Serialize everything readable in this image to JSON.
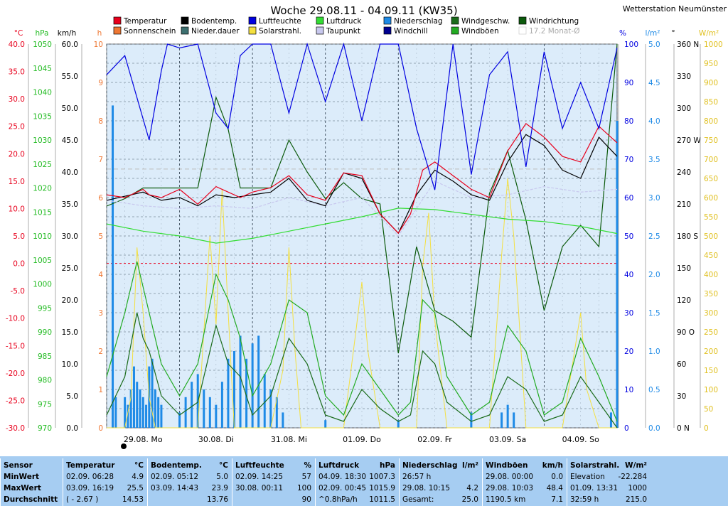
{
  "title": "Woche 29.08.11 - 04.09.11 (KW35)",
  "station": "Wetterstation Neumünster",
  "legend": [
    {
      "label": "Temperatur",
      "color": "#e8001c"
    },
    {
      "label": "Bodentemp.",
      "color": "#000000"
    },
    {
      "label": "Luftfeuchte",
      "color": "#0000e0"
    },
    {
      "label": "Luftdruck",
      "color": "#33dd33"
    },
    {
      "label": "Niederschlag",
      "color": "#1e8ae6"
    },
    {
      "label": "Windgeschw.",
      "color": "#1a6b1a"
    },
    {
      "label": "Windrichtung",
      "color": "#0c5a0c"
    },
    {
      "label": "Sonnenschein",
      "color": "#ee7733"
    },
    {
      "label": "Nieder.dauer",
      "color": "#3d7070"
    },
    {
      "label": "Solarstrahl.",
      "color": "#f4e040"
    },
    {
      "label": "Taupunkt",
      "color": "#c8c8ee"
    },
    {
      "label": "Windchill",
      "color": "#000090"
    },
    {
      "label": "Windböen",
      "color": "#22aa22"
    },
    {
      "label": "17.2 Monat-Ø",
      "color": "#cccccc"
    }
  ],
  "axes": {
    "temp": {
      "unit": "°C",
      "color": "#e8001c",
      "ticks": [
        "40.0",
        "35.0",
        "30.0",
        "25.0",
        "20.0",
        "15.0",
        "10.0",
        "5.0",
        "0.0",
        "-5.0",
        "-10.0",
        "-15.0",
        "-20.0",
        "-25.0",
        "-30.0"
      ]
    },
    "pressure": {
      "unit": "hPa",
      "color": "#22bb22",
      "ticks": [
        "1050",
        "1045",
        "1040",
        "1035",
        "1030",
        "1025",
        "1020",
        "1015",
        "1010",
        "1005",
        "1000",
        "995",
        "990",
        "985",
        "980",
        "975",
        "970"
      ]
    },
    "wind": {
      "unit": "km/h",
      "color": "#000000",
      "ticks": [
        "60.0",
        "55.0",
        "50.0",
        "45.0",
        "40.0",
        "35.0",
        "30.0",
        "25.0",
        "20.0",
        "15.0",
        "10.0",
        "5.0",
        "0.0"
      ]
    },
    "hours": {
      "unit": "h",
      "color": "#ee7733",
      "ticks": [
        "10",
        "9",
        "8",
        "7",
        "6",
        "5",
        "4",
        "3",
        "2",
        "1",
        "0"
      ]
    },
    "humidity": {
      "unit": "%",
      "color": "#0000e0",
      "ticks": [
        "100",
        "90",
        "80",
        "70",
        "60",
        "50",
        "40",
        "30",
        "20",
        "10",
        "0"
      ]
    },
    "rain": {
      "unit": "l/m²",
      "color": "#1e8ae6",
      "ticks": [
        "5.0",
        "4.5",
        "4.0",
        "3.5",
        "3.0",
        "2.5",
        "2.0",
        "1.5",
        "1.0",
        "0.5",
        "0.0"
      ]
    },
    "direction": {
      "unit": "°",
      "color": "#000000",
      "ticks": [
        "360 N",
        "330",
        "300",
        "270 W",
        "240",
        "210",
        "180 S",
        "150",
        "120",
        "90 O",
        "60",
        "30",
        "0 N"
      ]
    },
    "solar": {
      "unit": "W/m²",
      "color": "#e0c020",
      "ticks": [
        "1000",
        "950",
        "900",
        "850",
        "800",
        "750",
        "700",
        "650",
        "600",
        "550",
        "500",
        "450",
        "400",
        "350",
        "300",
        "250",
        "200",
        "150",
        "100",
        "50",
        "0"
      ]
    }
  },
  "days": [
    "29.08.  Mo",
    "30.08.  Di",
    "31.08.  Mi",
    "01.09.  Do",
    "02.09.  Fr",
    "03.09.  Sa",
    "04.09.  So"
  ],
  "chart_data": {
    "type": "line",
    "title": "Woche 29.08.11 - 04.09.11 (KW35)",
    "x_unit": "hours since 29.08. 00:00",
    "x_range": [
      0,
      168
    ],
    "monthly_avg_temp": 17.2,
    "series": [
      {
        "name": "Temperatur",
        "axis": "°C",
        "x": [
          0,
          6,
          12,
          14,
          18,
          24,
          30,
          36,
          40,
          44,
          48,
          54,
          60,
          66,
          72,
          78,
          84,
          90,
          96,
          100,
          104,
          108,
          114,
          120,
          126,
          132,
          138,
          144,
          150,
          156,
          162,
          168
        ],
        "y": [
          12.5,
          12.0,
          13.5,
          12.5,
          12.0,
          13.5,
          10.8,
          14.0,
          13.0,
          12.0,
          13.0,
          13.8,
          16.0,
          12.5,
          11.5,
          16.5,
          16.0,
          9.0,
          5.5,
          9.0,
          17.0,
          18.5,
          16.0,
          13.5,
          12.0,
          20.5,
          25.5,
          23.0,
          19.5,
          18.5,
          25.0,
          22.0
        ]
      },
      {
        "name": "Bodentemp.",
        "axis": "°C",
        "x": [
          0,
          12,
          18,
          24,
          30,
          36,
          42,
          48,
          54,
          60,
          66,
          72,
          78,
          84,
          90,
          96,
          102,
          108,
          114,
          120,
          126,
          132,
          138,
          144,
          150,
          156,
          162,
          168
        ],
        "y": [
          11.5,
          13.0,
          11.5,
          12.0,
          10.5,
          12.5,
          12.0,
          12.5,
          13.0,
          15.5,
          11.5,
          10.5,
          16.5,
          15.5,
          9.0,
          5.5,
          12.5,
          17.0,
          15.0,
          12.5,
          11.5,
          18.5,
          23.5,
          21.5,
          17.0,
          15.5,
          23.0,
          19.5
        ]
      },
      {
        "name": "Taupunkt",
        "axis": "°C",
        "x": [
          0,
          12,
          24,
          36,
          48,
          60,
          72,
          84,
          96,
          108,
          120,
          132,
          144,
          156,
          168
        ],
        "y": [
          11.5,
          10.5,
          10.0,
          10.5,
          10.0,
          12.0,
          10.5,
          12.0,
          5.0,
          15.0,
          12.0,
          12.5,
          14.0,
          13.0,
          13.5
        ]
      },
      {
        "name": "Luftfeuchte",
        "axis": "%",
        "x": [
          0,
          6,
          10,
          14,
          18,
          20,
          24,
          30,
          36,
          40,
          44,
          48,
          54,
          60,
          66,
          72,
          78,
          84,
          90,
          96,
          102,
          108,
          114,
          120,
          126,
          132,
          138,
          144,
          150,
          156,
          162,
          168
        ],
        "y": [
          92,
          97,
          86,
          75,
          93,
          100,
          99,
          100,
          82,
          78,
          97,
          100,
          100,
          82,
          100,
          85,
          100,
          80,
          100,
          100,
          78,
          62,
          100,
          66,
          92,
          98,
          68,
          98,
          78,
          90,
          78,
          99
        ]
      },
      {
        "name": "Luftdruck",
        "axis": "hPa",
        "x": [
          0,
          12,
          24,
          36,
          48,
          60,
          72,
          84,
          96,
          108,
          120,
          132,
          144,
          156,
          168
        ],
        "y": [
          1012.5,
          1011.0,
          1010.0,
          1008.5,
          1009.5,
          1011.0,
          1012.5,
          1014.0,
          1015.8,
          1015.5,
          1014.5,
          1013.5,
          1013.0,
          1012.0,
          1010.5
        ]
      },
      {
        "name": "Niederschlag",
        "axis": "l/m²",
        "type": "bar",
        "x": [
          2,
          3,
          6,
          7,
          8,
          9,
          10,
          11,
          12,
          13,
          14,
          15,
          16,
          17,
          18,
          24,
          26,
          28,
          30,
          32,
          34,
          36,
          38,
          40,
          42,
          44,
          46,
          48,
          50,
          52,
          54,
          56,
          58,
          72,
          96,
          120,
          130,
          132,
          134,
          166,
          168
        ],
        "y": [
          4.2,
          0.4,
          0.4,
          0.3,
          0.5,
          0.8,
          0.6,
          0.5,
          0.4,
          0.3,
          0.8,
          0.9,
          0.5,
          0.4,
          0.3,
          0.2,
          0.4,
          0.6,
          0.7,
          0.5,
          0.4,
          0.3,
          0.6,
          0.9,
          1.0,
          1.2,
          0.9,
          1.1,
          1.2,
          0.7,
          0.5,
          0.4,
          0.2,
          0.1,
          0.1,
          0.2,
          0.2,
          0.3,
          0.2,
          0.2,
          4.0
        ]
      },
      {
        "name": "Solarstrahl.",
        "axis": "W/m²",
        "x": [
          0,
          6,
          8,
          10,
          12,
          14,
          16,
          18,
          24,
          30,
          34,
          36,
          38,
          40,
          42,
          48,
          54,
          58,
          60,
          62,
          64,
          66,
          72,
          78,
          82,
          84,
          86,
          90,
          96,
          102,
          104,
          106,
          108,
          112,
          120,
          126,
          130,
          132,
          134,
          138,
          144,
          150,
          154,
          156,
          158,
          162,
          168
        ],
        "y": [
          0,
          0,
          80,
          470,
          300,
          80,
          0,
          0,
          0,
          0,
          500,
          270,
          620,
          300,
          0,
          0,
          0,
          150,
          470,
          200,
          0,
          0,
          0,
          0,
          250,
          380,
          200,
          0,
          0,
          0,
          420,
          560,
          280,
          0,
          0,
          0,
          450,
          650,
          500,
          0,
          0,
          0,
          200,
          300,
          100,
          0,
          0
        ]
      },
      {
        "name": "Windgeschw.",
        "axis": "km/h",
        "x": [
          0,
          6,
          10,
          12,
          14,
          18,
          24,
          30,
          36,
          40,
          44,
          48,
          54,
          60,
          66,
          72,
          78,
          84,
          90,
          96,
          100,
          104,
          108,
          112,
          120,
          126,
          132,
          138,
          144,
          150,
          156,
          162,
          168
        ],
        "y": [
          2,
          8,
          18,
          14,
          12,
          5,
          2,
          4,
          16,
          10,
          8,
          2,
          5,
          14,
          10,
          2,
          1,
          6,
          3,
          1,
          2,
          12,
          10,
          4,
          1,
          2,
          8,
          6,
          1,
          2,
          8,
          4,
          0
        ]
      },
      {
        "name": "Windböen",
        "axis": "km/h",
        "x": [
          0,
          6,
          10,
          12,
          14,
          18,
          24,
          30,
          36,
          40,
          44,
          48,
          54,
          60,
          66,
          72,
          78,
          84,
          90,
          96,
          100,
          104,
          108,
          112,
          120,
          126,
          132,
          138,
          144,
          150,
          156,
          162,
          168
        ],
        "y": [
          8,
          18,
          26,
          22,
          18,
          10,
          5,
          10,
          24,
          20,
          14,
          5,
          10,
          20,
          18,
          5,
          2,
          10,
          6,
          2,
          4,
          20,
          18,
          8,
          2,
          4,
          16,
          12,
          2,
          4,
          14,
          8,
          1
        ]
      },
      {
        "name": "Windrichtung",
        "axis": "°",
        "x": [
          0,
          6,
          12,
          18,
          24,
          30,
          36,
          40,
          44,
          48,
          54,
          60,
          66,
          72,
          78,
          84,
          90,
          96,
          102,
          108,
          114,
          120,
          126,
          132,
          138,
          144,
          150,
          156,
          162,
          168
        ],
        "y": [
          208,
          215,
          225,
          225,
          225,
          225,
          310,
          280,
          225,
          225,
          225,
          270,
          240,
          215,
          230,
          215,
          210,
          70,
          170,
          110,
          100,
          85,
          220,
          260,
          195,
          110,
          170,
          190,
          170,
          360
        ]
      }
    ]
  },
  "stats": {
    "cols": [
      {
        "hdr": "Sensor",
        "unit": "",
        "rows": [
          [
            "MinWert",
            "",
            ""
          ],
          [
            "MaxWert",
            "",
            ""
          ],
          [
            "Durchschnitt",
            "",
            ""
          ]
        ]
      },
      {
        "hdr": "Temperatur",
        "unit": "°C",
        "rows": [
          [
            "02.09.  06:28",
            "",
            "4.9"
          ],
          [
            "03.09.  16:19",
            "",
            "25.5"
          ],
          [
            "( - 2.67 )",
            "",
            "14.53"
          ]
        ]
      },
      {
        "hdr": "Bodentemp.",
        "unit": "°C",
        "rows": [
          [
            "02.09.  05:12",
            "",
            "5.0"
          ],
          [
            "03.09.  14:43",
            "",
            "23.9"
          ],
          [
            "",
            "",
            "13.76"
          ]
        ]
      },
      {
        "hdr": "Luftfeuchte",
        "unit": "%",
        "rows": [
          [
            "02.09.  14:25",
            "",
            "57"
          ],
          [
            "30.08.  00:11",
            "",
            "100"
          ],
          [
            "",
            "",
            "90"
          ]
        ]
      },
      {
        "hdr": "Luftdruck",
        "unit": "hPa",
        "rows": [
          [
            "04.09.  18:30",
            "",
            "1007.3"
          ],
          [
            "02.09.  00:45",
            "",
            "1015.9"
          ],
          [
            "^0.8hPa/h",
            "",
            "1011.5"
          ]
        ]
      },
      {
        "hdr": "Niederschlag",
        "unit": "l/m²",
        "rows": [
          [
            "26:57 h",
            "",
            ""
          ],
          [
            "29.08.  10:15",
            "",
            "4.2"
          ],
          [
            "Gesamt:",
            "",
            "25.0"
          ]
        ]
      },
      {
        "hdr": "Windböen",
        "unit": "km/h",
        "rows": [
          [
            "29.08.  00:00",
            "",
            "0.0"
          ],
          [
            "29.08.  10:03",
            "",
            "48.4"
          ],
          [
            "1190.5 km",
            "",
            "7.1"
          ]
        ]
      },
      {
        "hdr": "Solarstrahl.",
        "unit": "W/m²",
        "rows": [
          [
            "Elevation",
            "",
            "-22.284"
          ],
          [
            "01.09.  13:31",
            "",
            "1000"
          ],
          [
            "32:59 h",
            "",
            "215.0"
          ]
        ]
      }
    ]
  }
}
